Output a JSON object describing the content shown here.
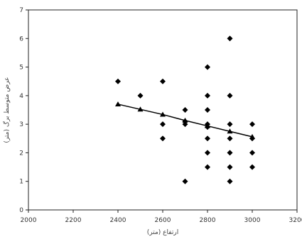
{
  "chart_data": {
    "type": "scatter",
    "title": "",
    "xlabel": "ارتفاع (متر)",
    "ylabel": "عرض متوسط برگ (متر)",
    "xlim": [
      2000,
      3000
    ],
    "ylim": [
      0,
      7
    ],
    "x_ticks": [
      "2000",
      "2200",
      "2400",
      "2600",
      "2800",
      "3000",
      "3200"
    ],
    "y_ticks": [
      "0",
      "1",
      "2",
      "3",
      "4",
      "5",
      "6",
      "7"
    ],
    "grid": false,
    "legend": "none",
    "series": [
      {
        "marker": "diamond",
        "color": "#000000",
        "points": [
          [
            2400,
            4.5
          ],
          [
            2500,
            4.0
          ],
          [
            2600,
            4.5
          ],
          [
            2600,
            3.0
          ],
          [
            2600,
            2.5
          ],
          [
            2700,
            3.5
          ],
          [
            2700,
            3.1
          ],
          [
            2700,
            3.0
          ],
          [
            2700,
            1.0
          ],
          [
            2800,
            5.0
          ],
          [
            2800,
            4.0
          ],
          [
            2800,
            3.5
          ],
          [
            2800,
            3.0
          ],
          [
            2800,
            2.9
          ],
          [
            2800,
            2.5
          ],
          [
            2800,
            2.0
          ],
          [
            2800,
            1.5
          ],
          [
            2900,
            6.0
          ],
          [
            2900,
            4.0
          ],
          [
            2900,
            3.0
          ],
          [
            2900,
            2.5
          ],
          [
            2900,
            2.0
          ],
          [
            2900,
            1.5
          ],
          [
            2900,
            1.0
          ],
          [
            3000,
            3.0
          ],
          [
            3000,
            2.5
          ],
          [
            3000,
            2.0
          ],
          [
            3000,
            1.5
          ]
        ]
      },
      {
        "marker": "triangle",
        "color": "#000000",
        "line": true,
        "points": [
          [
            2400,
            3.7
          ],
          [
            2500,
            3.52
          ],
          [
            2600,
            3.34
          ],
          [
            2700,
            3.13
          ],
          [
            2800,
            2.94
          ],
          [
            2900,
            2.75
          ],
          [
            3000,
            2.56
          ]
        ]
      }
    ]
  }
}
